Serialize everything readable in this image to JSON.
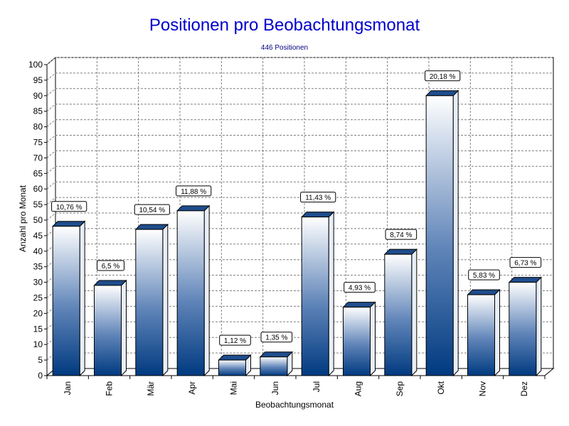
{
  "chart_data": {
    "type": "bar",
    "title": "Positionen pro Beobachtungsmonat",
    "subtitle": "446 Positionen",
    "xlabel": "Beobachtungsmonat",
    "ylabel": "Anzahl pro Monat",
    "ylim": [
      0,
      100
    ],
    "ytick_step": 5,
    "grid": true,
    "categories": [
      "Jan",
      "Feb",
      "Mär",
      "Apr",
      "Mai",
      "Jun",
      "Jul",
      "Aug",
      "Sep",
      "Okt",
      "Nov",
      "Dez"
    ],
    "values": [
      48,
      29,
      47,
      53,
      5,
      6,
      51,
      22,
      39,
      90,
      26,
      30
    ],
    "percent_labels": [
      "10,76 %",
      "6,5 %",
      "10,54 %",
      "11,88 %",
      "1,12 %",
      "1,35 %",
      "11,43 %",
      "4,93 %",
      "8,74 %",
      "20,18 %",
      "5,83 %",
      "6,73 %"
    ],
    "colors": {
      "bar_top": "#ffffff",
      "bar_bottom": "#003a80",
      "side": "#e8eef8",
      "cap": "#1f4d8c",
      "grid": "#808080"
    }
  }
}
